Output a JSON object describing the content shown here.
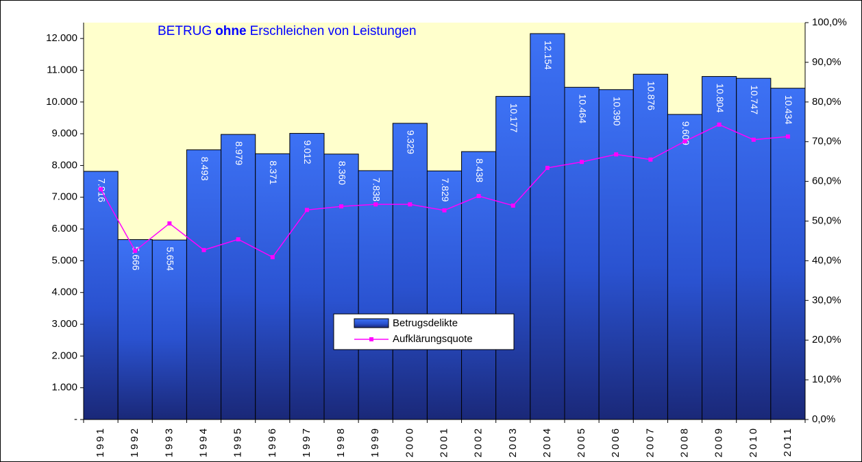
{
  "chart_data": {
    "type": "bar_line",
    "title": [
      "BETRUG",
      "ohne",
      "Erschleichen von Leistungen"
    ],
    "categories": [
      "1991",
      "1992",
      "1993",
      "1994",
      "1995",
      "1996",
      "1997",
      "1998",
      "1999",
      "2000",
      "2001",
      "2002",
      "2003",
      "2004",
      "2005",
      "2006",
      "2007",
      "2008",
      "2009",
      "2010",
      "2011"
    ],
    "series": [
      {
        "name": "Betrugsdelikte",
        "color": "#2f5fe0",
        "values": [
          7816,
          5666,
          5654,
          8493,
          8979,
          8371,
          9012,
          8360,
          7838,
          9329,
          7829,
          8438,
          10177,
          12154,
          10464,
          10390,
          10876,
          9609,
          10804,
          10747,
          10434
        ],
        "value_labels": [
          "7.816",
          "5.666",
          "5.654",
          "8.493",
          "8.979",
          "8.371",
          "9.012",
          "8.360",
          "7.838",
          "9.329",
          "7.829",
          "8.438",
          "10.177",
          "12.154",
          "10.464",
          "10.390",
          "10.876",
          "9.609",
          "10.804",
          "10.747",
          "10.434"
        ]
      },
      {
        "name": "Aufklärungsquote",
        "color": "#ff00ff",
        "axis": "y2",
        "values": [
          58.0,
          42.5,
          49.4,
          42.7,
          45.4,
          40.9,
          52.8,
          53.7,
          54.2,
          54.2,
          52.7,
          56.3,
          53.9,
          63.4,
          64.9,
          66.8,
          65.5,
          70.1,
          74.3,
          70.5,
          71.3
        ]
      }
    ],
    "ylim": [
      0,
      12500
    ],
    "yticks": [
      {
        "value": 0,
        "label": "-"
      },
      {
        "value": 1000,
        "label": "1.000"
      },
      {
        "value": 2000,
        "label": "2.000"
      },
      {
        "value": 3000,
        "label": "3.000"
      },
      {
        "value": 4000,
        "label": "4.000"
      },
      {
        "value": 5000,
        "label": "5.000"
      },
      {
        "value": 6000,
        "label": "6.000"
      },
      {
        "value": 7000,
        "label": "7.000"
      },
      {
        "value": 8000,
        "label": "8.000"
      },
      {
        "value": 9000,
        "label": "9.000"
      },
      {
        "value": 10000,
        "label": "10.000"
      },
      {
        "value": 11000,
        "label": "11.000"
      },
      {
        "value": 12000,
        "label": "12.000"
      }
    ],
    "y2lim": [
      0,
      100
    ],
    "y2ticks": [
      {
        "value": 0,
        "label": "0,0%"
      },
      {
        "value": 10,
        "label": "10,0%"
      },
      {
        "value": 20,
        "label": "20,0%"
      },
      {
        "value": 30,
        "label": "30,0%"
      },
      {
        "value": 40,
        "label": "40,0%"
      },
      {
        "value": 50,
        "label": "50,0%"
      },
      {
        "value": 60,
        "label": "60,0%"
      },
      {
        "value": 70,
        "label": "70,0%"
      },
      {
        "value": 80,
        "label": "80,0%"
      },
      {
        "value": 90,
        "label": "90,0%"
      },
      {
        "value": 100,
        "label": "100,0%"
      }
    ],
    "background": "#ffffcc"
  }
}
